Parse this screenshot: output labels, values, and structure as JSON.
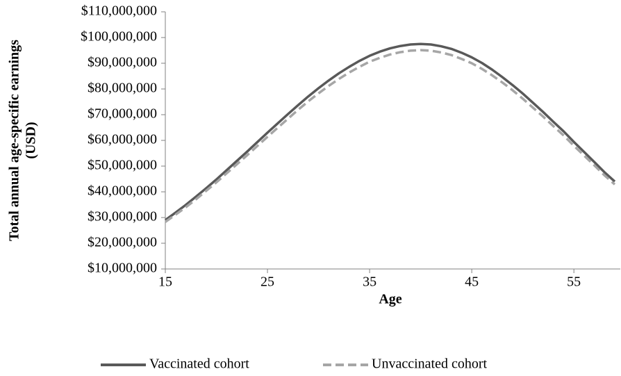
{
  "chart_data": {
    "type": "line",
    "xlabel": "Age",
    "ylabel": [
      "Total annual age-specific earnings",
      "(USD)"
    ],
    "x": [
      15,
      16,
      17,
      18,
      19,
      20,
      21,
      22,
      23,
      24,
      25,
      26,
      27,
      28,
      29,
      30,
      31,
      32,
      33,
      34,
      35,
      36,
      37,
      38,
      39,
      40,
      41,
      42,
      43,
      44,
      45,
      46,
      47,
      48,
      49,
      50,
      51,
      52,
      53,
      54,
      55,
      56,
      57,
      58,
      59
    ],
    "series": [
      {
        "name": "Vaccinated cohort",
        "color": "#595959",
        "dash": false,
        "values": [
          29000000,
          31900000,
          34900000,
          38100000,
          41400000,
          44800000,
          48400000,
          52000000,
          55600000,
          59300000,
          63000000,
          66600000,
          70200000,
          73700000,
          77100000,
          80300000,
          83300000,
          86100000,
          88600000,
          90900000,
          92900000,
          94500000,
          95800000,
          96700000,
          97300000,
          97500000,
          97300000,
          96600000,
          95600000,
          94100000,
          92300000,
          90100000,
          87500000,
          84600000,
          81500000,
          78200000,
          74600000,
          71000000,
          67200000,
          63500000,
          59400000,
          55500000,
          51600000,
          47600000,
          44000000
        ]
      },
      {
        "name": "Unvaccinated cohort",
        "color": "#a6a6a6",
        "dash": true,
        "values": [
          28300000,
          31100000,
          34000000,
          37100000,
          40400000,
          43700000,
          47200000,
          50700000,
          54200000,
          57800000,
          61400000,
          64900000,
          68400000,
          71900000,
          75200000,
          78300000,
          81200000,
          83900000,
          86400000,
          88600000,
          90600000,
          92100000,
          93400000,
          94300000,
          94900000,
          95100000,
          94900000,
          94200000,
          93200000,
          91700000,
          90000000,
          87800000,
          85300000,
          82500000,
          79500000,
          76200000,
          72700000,
          69200000,
          65500000,
          61900000,
          57900000,
          54100000,
          50300000,
          46400000,
          42900000
        ]
      }
    ],
    "xlim": [
      15,
      59
    ],
    "xticks": [
      15,
      25,
      35,
      45,
      55
    ],
    "ylim": [
      10000000,
      110000000
    ],
    "yticks": [
      {
        "value": 10000000,
        "label": "$10,000,000"
      },
      {
        "value": 20000000,
        "label": "$20,000,000"
      },
      {
        "value": 30000000,
        "label": "$30,000,000"
      },
      {
        "value": 40000000,
        "label": "$40,000,000"
      },
      {
        "value": 50000000,
        "label": "$50,000,000"
      },
      {
        "value": 60000000,
        "label": "$60,000,000"
      },
      {
        "value": 70000000,
        "label": "$70,000,000"
      },
      {
        "value": 80000000,
        "label": "$80,000,000"
      },
      {
        "value": 90000000,
        "label": "$90,000,000"
      },
      {
        "value": 100000000,
        "label": "$100,000,000"
      },
      {
        "value": 110000000,
        "label": "$110,000,000"
      }
    ],
    "grid": false,
    "legend": "bottom"
  }
}
